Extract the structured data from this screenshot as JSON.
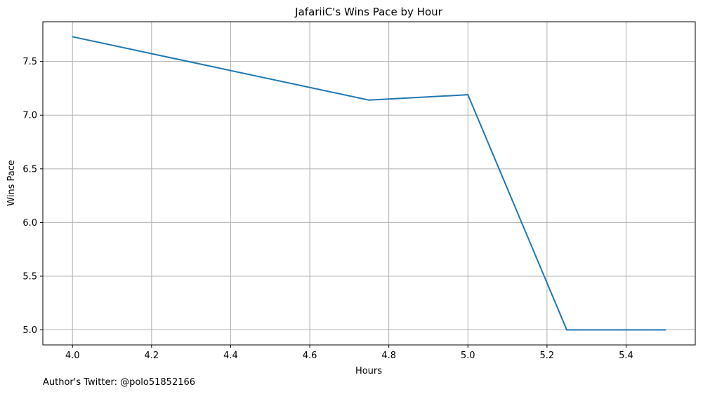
{
  "chart_data": {
    "type": "line",
    "title": "JafariiC's Wins Pace by Hour",
    "xlabel": "Hours",
    "ylabel": "Wins Pace",
    "xlim": [
      3.925,
      5.575
    ],
    "ylim": [
      4.86,
      7.87
    ],
    "xticks": [
      4.0,
      4.2,
      4.4,
      4.6,
      4.8,
      5.0,
      5.2,
      5.4
    ],
    "xtick_labels": [
      "4.0",
      "4.2",
      "4.4",
      "4.6",
      "4.8",
      "5.0",
      "5.2",
      "5.4"
    ],
    "yticks": [
      5.0,
      5.5,
      6.0,
      6.5,
      7.0,
      7.5
    ],
    "ytick_labels": [
      "5.0",
      "5.5",
      "6.0",
      "6.5",
      "7.0",
      "7.5"
    ],
    "grid": true,
    "series": [
      {
        "x": [
          4.0,
          4.75,
          5.0,
          5.25,
          5.5
        ],
        "y": [
          7.73,
          7.14,
          7.19,
          5.0,
          5.0
        ],
        "color": "#1f77b4"
      }
    ]
  },
  "footer": {
    "note": "Author's Twitter: @polo51852166"
  }
}
